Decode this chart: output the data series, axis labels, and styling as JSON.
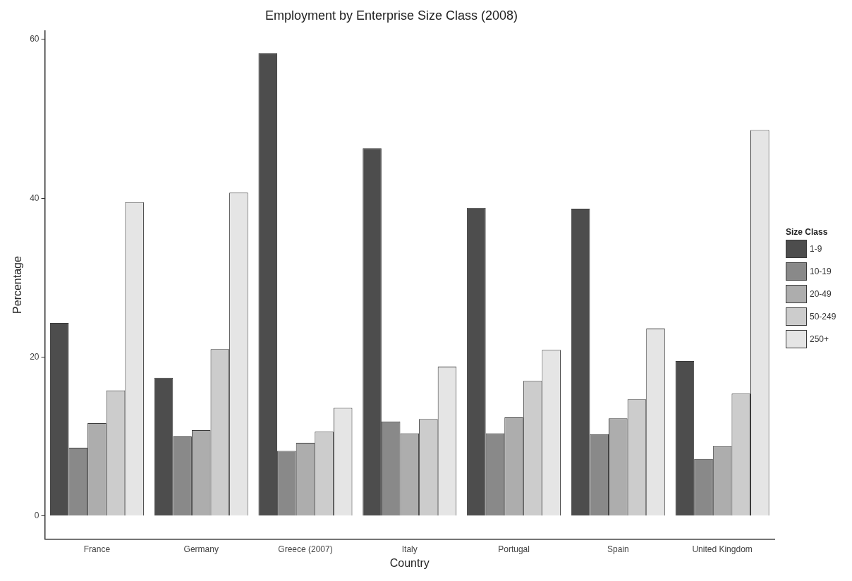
{
  "chart_data": {
    "type": "bar",
    "title": "Employment by Enterprise Size Class (2008)",
    "xlabel": "Country",
    "ylabel": "Percentage",
    "legend_title": "Size Class",
    "legend": "right",
    "categories": [
      "France",
      "Germany",
      "Greece (2007)",
      "Italy",
      "Portugal",
      "Spain",
      "United Kingdom"
    ],
    "series": [
      {
        "name": "1-9",
        "color": "#4d4d4d",
        "values": [
          24.3,
          17.4,
          58.3,
          46.3,
          38.8,
          38.7,
          19.5
        ]
      },
      {
        "name": "10-19",
        "color": "#898989",
        "values": [
          8.6,
          10.0,
          8.2,
          11.9,
          10.4,
          10.3,
          7.2
        ]
      },
      {
        "name": "20-49",
        "color": "#adadad",
        "values": [
          11.7,
          10.8,
          9.2,
          10.4,
          12.4,
          12.3,
          8.8
        ]
      },
      {
        "name": "50-249",
        "color": "#cccccc",
        "values": [
          15.8,
          21.0,
          10.6,
          12.2,
          17.0,
          14.7,
          15.4
        ]
      },
      {
        "name": "250+",
        "color": "#e5e5e5",
        "values": [
          39.5,
          40.7,
          13.6,
          18.8,
          20.9,
          23.6,
          48.6
        ]
      }
    ],
    "ylim": [
      -2.9,
      61.1
    ],
    "yticks": [
      0,
      20,
      40,
      60
    ],
    "grid": false
  }
}
